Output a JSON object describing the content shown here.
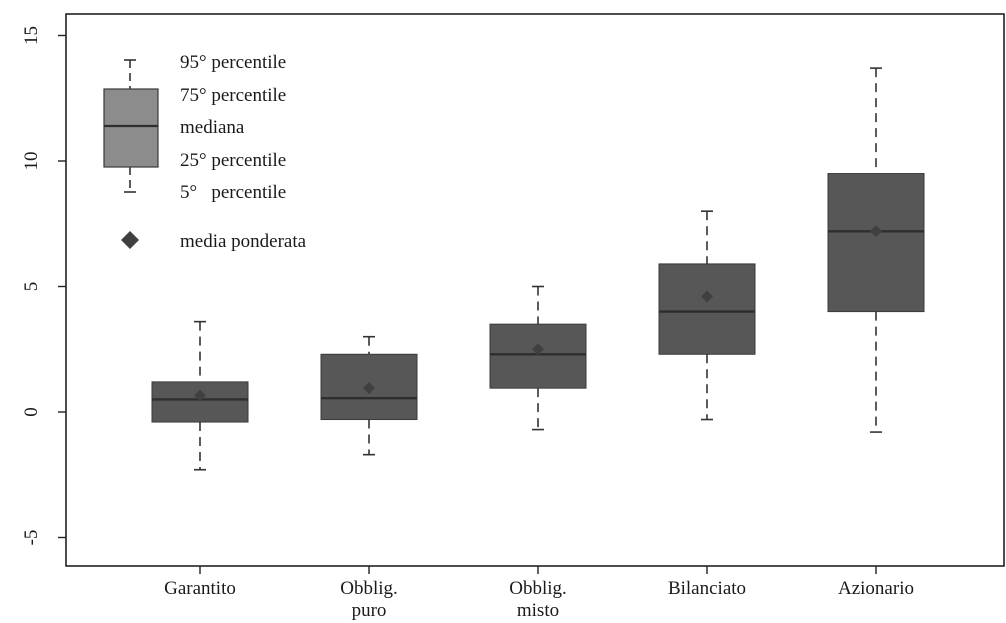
{
  "chart_data": {
    "type": "box",
    "title": "",
    "xlabel": "",
    "ylabel": "",
    "ylim": [
      -6.3,
      15.8
    ],
    "yticks": [
      -5,
      0,
      5,
      10,
      15
    ],
    "ytick_labels": [
      "-5",
      "0",
      "5",
      "10",
      "15"
    ],
    "grid": false,
    "legend_position": "top-left",
    "categories": [
      {
        "line1": "Garantito",
        "line2": ""
      },
      {
        "line1": "Obblig.",
        "line2": "puro"
      },
      {
        "line1": "Obblig.",
        "line2": "misto"
      },
      {
        "line1": "Bilanciato",
        "line2": ""
      },
      {
        "line1": "Azionario",
        "line2": ""
      }
    ],
    "boxes": [
      {
        "p5": -2.3,
        "p25": -0.4,
        "median": 0.5,
        "p75": 1.2,
        "p95": 3.6,
        "weighted_mean": 0.65
      },
      {
        "p5": -1.7,
        "p25": -0.3,
        "median": 0.55,
        "p75": 2.3,
        "p95": 3.0,
        "weighted_mean": 0.95
      },
      {
        "p5": -0.7,
        "p25": 0.95,
        "median": 2.3,
        "p75": 3.5,
        "p95": 5.0,
        "weighted_mean": 2.5
      },
      {
        "p5": -0.3,
        "p25": 2.3,
        "median": 4.0,
        "p75": 5.9,
        "p95": 8.0,
        "weighted_mean": 4.6
      },
      {
        "p5": -0.8,
        "p25": 4.0,
        "median": 7.2,
        "p75": 9.5,
        "p95": 13.7,
        "weighted_mean": 7.2
      }
    ],
    "legend": {
      "p95": "95° percentile",
      "p75": "75° percentile",
      "median": "mediana",
      "p25": "25° percentile",
      "p5": "5°   percentile",
      "mean": "media ponderata"
    },
    "colors": {
      "box_fill": "#575757",
      "legend_box_fill": "#8c8c8c",
      "median_line": "#2e2e2e",
      "whisker": "#333333",
      "mean_marker": "#404040",
      "axis": "#222222"
    }
  }
}
